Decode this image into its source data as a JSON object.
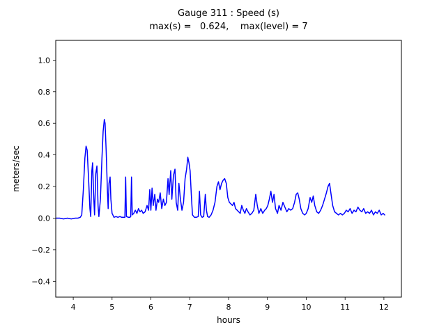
{
  "chart_data": {
    "type": "line",
    "title": "Gauge 311 : Speed (s)",
    "subtitle": "max(s) =   0.624,    max(level) = 7",
    "xlabel": "hours",
    "ylabel": "meters/sec",
    "xlim": [
      3.55,
      12.45
    ],
    "ylim": [
      -0.5,
      1.125
    ],
    "x_ticks": [
      4,
      5,
      6,
      7,
      8,
      9,
      10,
      11,
      12
    ],
    "x_tick_labels": [
      "4",
      "5",
      "6",
      "7",
      "8",
      "9",
      "10",
      "11",
      "12"
    ],
    "y_ticks": [
      -0.4,
      -0.2,
      0.0,
      0.2,
      0.4,
      0.6,
      0.8,
      1.0
    ],
    "y_tick_labels": [
      "−0.4",
      "−0.2",
      "0.0",
      "0.2",
      "0.4",
      "0.6",
      "0.8",
      "1.0"
    ],
    "grid": false,
    "legend": null,
    "line_color": "#0000ff",
    "line_width": 1.5,
    "max_s": 0.624,
    "max_level": 7,
    "series": [
      {
        "name": "speed",
        "points": [
          [
            3.55,
            0.0
          ],
          [
            3.65,
            0.0
          ],
          [
            3.75,
            -0.005
          ],
          [
            3.85,
            0.0
          ],
          [
            3.95,
            -0.005
          ],
          [
            4.05,
            0.0
          ],
          [
            4.12,
            0.0
          ],
          [
            4.18,
            0.005
          ],
          [
            4.22,
            0.02
          ],
          [
            4.26,
            0.18
          ],
          [
            4.3,
            0.38
          ],
          [
            4.33,
            0.455
          ],
          [
            4.36,
            0.43
          ],
          [
            4.4,
            0.22
          ],
          [
            4.43,
            0.06
          ],
          [
            4.45,
            0.01
          ],
          [
            4.48,
            0.3
          ],
          [
            4.5,
            0.35
          ],
          [
            4.53,
            0.12
          ],
          [
            4.55,
            0.02
          ],
          [
            4.58,
            0.28
          ],
          [
            4.61,
            0.33
          ],
          [
            4.64,
            0.08
          ],
          [
            4.66,
            0.01
          ],
          [
            4.7,
            0.12
          ],
          [
            4.74,
            0.38
          ],
          [
            4.77,
            0.55
          ],
          [
            4.8,
            0.624
          ],
          [
            4.82,
            0.6
          ],
          [
            4.85,
            0.42
          ],
          [
            4.88,
            0.18
          ],
          [
            4.9,
            0.06
          ],
          [
            4.92,
            0.22
          ],
          [
            4.95,
            0.26
          ],
          [
            4.97,
            0.12
          ],
          [
            5.0,
            0.03
          ],
          [
            5.05,
            0.005
          ],
          [
            5.1,
            0.01
          ],
          [
            5.15,
            0.005
          ],
          [
            5.2,
            0.01
          ],
          [
            5.25,
            0.005
          ],
          [
            5.3,
            0.005
          ],
          [
            5.33,
            0.005
          ],
          [
            5.35,
            0.26
          ],
          [
            5.37,
            0.01
          ],
          [
            5.42,
            0.005
          ],
          [
            5.46,
            0.005
          ],
          [
            5.48,
            0.01
          ],
          [
            5.5,
            0.26
          ],
          [
            5.52,
            0.02
          ],
          [
            5.56,
            0.03
          ],
          [
            5.6,
            0.05
          ],
          [
            5.64,
            0.03
          ],
          [
            5.68,
            0.06
          ],
          [
            5.72,
            0.04
          ],
          [
            5.76,
            0.05
          ],
          [
            5.8,
            0.03
          ],
          [
            5.85,
            0.04
          ],
          [
            5.9,
            0.08
          ],
          [
            5.94,
            0.05
          ],
          [
            5.97,
            0.18
          ],
          [
            6.0,
            0.05
          ],
          [
            6.03,
            0.19
          ],
          [
            6.06,
            0.08
          ],
          [
            6.1,
            0.15
          ],
          [
            6.13,
            0.05
          ],
          [
            6.17,
            0.12
          ],
          [
            6.2,
            0.1
          ],
          [
            6.24,
            0.16
          ],
          [
            6.28,
            0.06
          ],
          [
            6.32,
            0.12
          ],
          [
            6.36,
            0.08
          ],
          [
            6.4,
            0.1
          ],
          [
            6.44,
            0.25
          ],
          [
            6.47,
            0.15
          ],
          [
            6.51,
            0.3
          ],
          [
            6.54,
            0.12
          ],
          [
            6.58,
            0.27
          ],
          [
            6.62,
            0.31
          ],
          [
            6.65,
            0.1
          ],
          [
            6.69,
            0.05
          ],
          [
            6.72,
            0.22
          ],
          [
            6.76,
            0.12
          ],
          [
            6.8,
            0.05
          ],
          [
            6.84,
            0.1
          ],
          [
            6.88,
            0.25
          ],
          [
            6.92,
            0.31
          ],
          [
            6.95,
            0.385
          ],
          [
            6.98,
            0.35
          ],
          [
            7.01,
            0.3
          ],
          [
            7.04,
            0.15
          ],
          [
            7.07,
            0.02
          ],
          [
            7.12,
            0.005
          ],
          [
            7.17,
            0.005
          ],
          [
            7.22,
            0.01
          ],
          [
            7.25,
            0.17
          ],
          [
            7.28,
            0.02
          ],
          [
            7.32,
            0.005
          ],
          [
            7.36,
            0.01
          ],
          [
            7.4,
            0.15
          ],
          [
            7.43,
            0.05
          ],
          [
            7.46,
            0.01
          ],
          [
            7.5,
            0.005
          ],
          [
            7.55,
            0.02
          ],
          [
            7.6,
            0.05
          ],
          [
            7.65,
            0.1
          ],
          [
            7.7,
            0.2
          ],
          [
            7.74,
            0.23
          ],
          [
            7.78,
            0.18
          ],
          [
            7.82,
            0.22
          ],
          [
            7.86,
            0.24
          ],
          [
            7.9,
            0.25
          ],
          [
            7.94,
            0.22
          ],
          [
            7.98,
            0.13
          ],
          [
            8.02,
            0.1
          ],
          [
            8.06,
            0.09
          ],
          [
            8.1,
            0.08
          ],
          [
            8.14,
            0.1
          ],
          [
            8.18,
            0.06
          ],
          [
            8.22,
            0.05
          ],
          [
            8.26,
            0.04
          ],
          [
            8.3,
            0.03
          ],
          [
            8.34,
            0.08
          ],
          [
            8.38,
            0.05
          ],
          [
            8.42,
            0.03
          ],
          [
            8.46,
            0.06
          ],
          [
            8.5,
            0.04
          ],
          [
            8.55,
            0.02
          ],
          [
            8.6,
            0.03
          ],
          [
            8.65,
            0.05
          ],
          [
            8.7,
            0.15
          ],
          [
            8.74,
            0.08
          ],
          [
            8.78,
            0.03
          ],
          [
            8.83,
            0.06
          ],
          [
            8.88,
            0.03
          ],
          [
            8.93,
            0.05
          ],
          [
            8.97,
            0.06
          ],
          [
            9.01,
            0.08
          ],
          [
            9.05,
            0.12
          ],
          [
            9.09,
            0.17
          ],
          [
            9.13,
            0.1
          ],
          [
            9.17,
            0.15
          ],
          [
            9.21,
            0.06
          ],
          [
            9.26,
            0.03
          ],
          [
            9.3,
            0.08
          ],
          [
            9.35,
            0.05
          ],
          [
            9.4,
            0.1
          ],
          [
            9.45,
            0.07
          ],
          [
            9.5,
            0.04
          ],
          [
            9.55,
            0.06
          ],
          [
            9.6,
            0.05
          ],
          [
            9.65,
            0.06
          ],
          [
            9.7,
            0.1
          ],
          [
            9.74,
            0.15
          ],
          [
            9.78,
            0.16
          ],
          [
            9.82,
            0.12
          ],
          [
            9.86,
            0.06
          ],
          [
            9.91,
            0.03
          ],
          [
            9.96,
            0.02
          ],
          [
            10.0,
            0.03
          ],
          [
            10.05,
            0.06
          ],
          [
            10.1,
            0.13
          ],
          [
            10.14,
            0.1
          ],
          [
            10.18,
            0.14
          ],
          [
            10.22,
            0.08
          ],
          [
            10.27,
            0.04
          ],
          [
            10.32,
            0.03
          ],
          [
            10.37,
            0.05
          ],
          [
            10.42,
            0.08
          ],
          [
            10.47,
            0.12
          ],
          [
            10.52,
            0.16
          ],
          [
            10.56,
            0.2
          ],
          [
            10.6,
            0.22
          ],
          [
            10.64,
            0.15
          ],
          [
            10.68,
            0.08
          ],
          [
            10.73,
            0.04
          ],
          [
            10.78,
            0.03
          ],
          [
            10.83,
            0.02
          ],
          [
            10.88,
            0.03
          ],
          [
            10.93,
            0.02
          ],
          [
            10.98,
            0.03
          ],
          [
            11.03,
            0.05
          ],
          [
            11.08,
            0.04
          ],
          [
            11.13,
            0.06
          ],
          [
            11.18,
            0.03
          ],
          [
            11.23,
            0.05
          ],
          [
            11.28,
            0.04
          ],
          [
            11.33,
            0.07
          ],
          [
            11.38,
            0.05
          ],
          [
            11.43,
            0.04
          ],
          [
            11.48,
            0.06
          ],
          [
            11.53,
            0.03
          ],
          [
            11.58,
            0.04
          ],
          [
            11.63,
            0.03
          ],
          [
            11.68,
            0.05
          ],
          [
            11.73,
            0.02
          ],
          [
            11.78,
            0.04
          ],
          [
            11.83,
            0.03
          ],
          [
            11.88,
            0.05
          ],
          [
            11.93,
            0.02
          ],
          [
            11.98,
            0.03
          ],
          [
            12.02,
            0.02
          ]
        ]
      }
    ]
  },
  "layout_colors": {
    "background": "#ffffff",
    "axes_stroke": "#000000",
    "text": "#000000"
  }
}
